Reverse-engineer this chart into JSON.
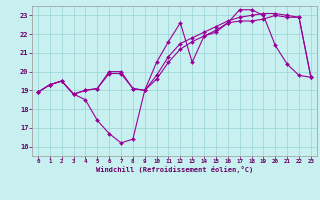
{
  "xlabel": "Windchill (Refroidissement éolien,°C)",
  "bg_color": "#c8f0f0",
  "grid_color": "#a0d8d8",
  "line_color": "#990099",
  "xlim": [
    -0.5,
    23.5
  ],
  "ylim": [
    15.5,
    23.5
  ],
  "xticks": [
    0,
    1,
    2,
    3,
    4,
    5,
    6,
    7,
    8,
    9,
    10,
    11,
    12,
    13,
    14,
    15,
    16,
    17,
    18,
    19,
    20,
    21,
    22,
    23
  ],
  "yticks": [
    16,
    17,
    18,
    19,
    20,
    21,
    22,
    23
  ],
  "line1_x": [
    0,
    1,
    2,
    3,
    4,
    5,
    6,
    7,
    8,
    9,
    10,
    11,
    12,
    13,
    14,
    15,
    16,
    17,
    18,
    19,
    20,
    21,
    22,
    23
  ],
  "line1_y": [
    18.9,
    19.3,
    19.5,
    18.8,
    18.5,
    17.4,
    16.7,
    16.2,
    16.4,
    19.0,
    20.5,
    21.6,
    22.6,
    20.5,
    21.9,
    22.1,
    22.6,
    23.3,
    23.3,
    23.0,
    21.4,
    20.4,
    19.8,
    19.7
  ],
  "line2_x": [
    0,
    1,
    2,
    3,
    4,
    5,
    6,
    7,
    8,
    9,
    10,
    11,
    12,
    13,
    14,
    15,
    16,
    17,
    18,
    19,
    20,
    21,
    22,
    23
  ],
  "line2_y": [
    18.9,
    19.3,
    19.5,
    18.8,
    19.0,
    19.1,
    19.9,
    19.9,
    19.1,
    19.0,
    19.6,
    20.5,
    21.2,
    21.6,
    21.9,
    22.2,
    22.6,
    22.7,
    22.7,
    22.8,
    23.0,
    22.9,
    22.9,
    19.7
  ],
  "line3_x": [
    0,
    1,
    2,
    3,
    4,
    5,
    6,
    7,
    8,
    9,
    10,
    11,
    12,
    13,
    14,
    15,
    16,
    17,
    18,
    19,
    20,
    21,
    22,
    23
  ],
  "line3_y": [
    18.9,
    19.3,
    19.5,
    18.8,
    19.0,
    19.1,
    20.0,
    20.0,
    19.1,
    19.0,
    19.8,
    20.8,
    21.5,
    21.8,
    22.1,
    22.4,
    22.7,
    22.9,
    23.0,
    23.1,
    23.1,
    23.0,
    22.9,
    19.7
  ]
}
